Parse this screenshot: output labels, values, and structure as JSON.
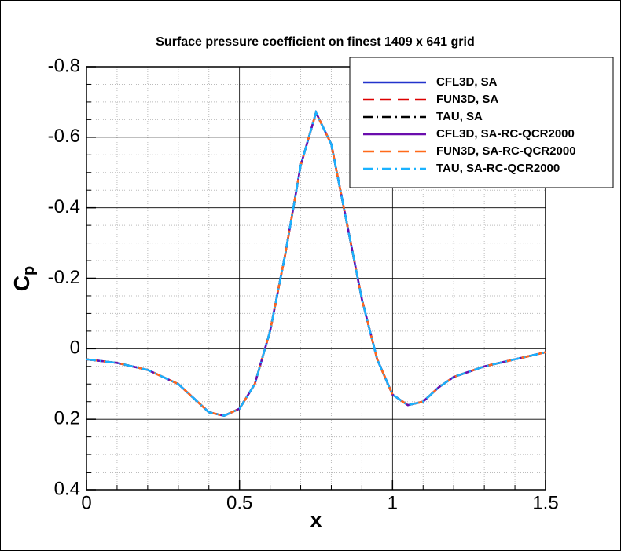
{
  "chart_data": {
    "type": "line",
    "title": "Surface pressure coefficient on finest 1409 x 641 grid",
    "xlabel": "x",
    "ylabel": "C",
    "ylabel_subscript": "p",
    "x": [
      0,
      0.1,
      0.2,
      0.3,
      0.35,
      0.4,
      0.45,
      0.5,
      0.55,
      0.6,
      0.65,
      0.7,
      0.75,
      0.8,
      0.85,
      0.9,
      0.95,
      1.0,
      1.05,
      1.1,
      1.15,
      1.2,
      1.3,
      1.4,
      1.5
    ],
    "series": [
      {
        "name": "CFL3D, SA",
        "color": "#2233cc",
        "dash": "solid",
        "values": [
          0.03,
          0.04,
          0.06,
          0.1,
          0.14,
          0.18,
          0.19,
          0.17,
          0.1,
          -0.05,
          -0.27,
          -0.52,
          -0.67,
          -0.58,
          -0.36,
          -0.14,
          0.03,
          0.13,
          0.16,
          0.15,
          0.11,
          0.08,
          0.05,
          0.03,
          0.01
        ]
      },
      {
        "name": "FUN3D, SA",
        "color": "#dd0000",
        "dash": "dashed",
        "values": [
          0.03,
          0.04,
          0.06,
          0.1,
          0.14,
          0.18,
          0.19,
          0.17,
          0.1,
          -0.05,
          -0.27,
          -0.52,
          -0.67,
          -0.58,
          -0.36,
          -0.14,
          0.03,
          0.13,
          0.16,
          0.15,
          0.11,
          0.08,
          0.05,
          0.03,
          0.01
        ]
      },
      {
        "name": "TAU, SA",
        "color": "#000000",
        "dash": "dashdot",
        "values": [
          0.03,
          0.04,
          0.06,
          0.1,
          0.14,
          0.18,
          0.19,
          0.17,
          0.1,
          -0.05,
          -0.27,
          -0.52,
          -0.67,
          -0.58,
          -0.36,
          -0.14,
          0.03,
          0.13,
          0.16,
          0.15,
          0.11,
          0.08,
          0.05,
          0.03,
          0.01
        ]
      },
      {
        "name": "CFL3D, SA-RC-QCR2000",
        "color": "#6a0dad",
        "dash": "solid",
        "values": [
          0.03,
          0.04,
          0.06,
          0.1,
          0.14,
          0.18,
          0.19,
          0.17,
          0.1,
          -0.05,
          -0.27,
          -0.52,
          -0.67,
          -0.58,
          -0.36,
          -0.14,
          0.03,
          0.13,
          0.16,
          0.15,
          0.11,
          0.08,
          0.05,
          0.03,
          0.01
        ]
      },
      {
        "name": "FUN3D, SA-RC-QCR2000",
        "color": "#ff6a1a",
        "dash": "dashed",
        "values": [
          0.03,
          0.04,
          0.06,
          0.1,
          0.14,
          0.18,
          0.19,
          0.17,
          0.1,
          -0.05,
          -0.27,
          -0.52,
          -0.67,
          -0.58,
          -0.36,
          -0.14,
          0.03,
          0.13,
          0.16,
          0.15,
          0.11,
          0.08,
          0.05,
          0.03,
          0.01
        ]
      },
      {
        "name": "TAU, SA-RC-QCR2000",
        "color": "#1ab2ff",
        "dash": "dashdot",
        "values": [
          0.03,
          0.04,
          0.06,
          0.1,
          0.14,
          0.18,
          0.19,
          0.17,
          0.1,
          -0.05,
          -0.27,
          -0.52,
          -0.67,
          -0.58,
          -0.36,
          -0.14,
          0.03,
          0.13,
          0.16,
          0.15,
          0.11,
          0.08,
          0.05,
          0.03,
          0.01
        ]
      }
    ],
    "xlim": [
      0,
      1.5
    ],
    "ylim": [
      0.4,
      -0.8
    ],
    "xticks": [
      0,
      0.5,
      1,
      1.5
    ],
    "yticks": [
      -0.8,
      -0.6,
      -0.4,
      -0.2,
      0,
      0.2,
      0.4
    ],
    "minor_xticks": [
      0.1,
      0.2,
      0.3,
      0.4,
      0.6,
      0.7,
      0.8,
      0.9,
      1.1,
      1.2,
      1.3,
      1.4
    ],
    "minor_yticks": [
      -0.75,
      -0.7,
      -0.65,
      -0.55,
      -0.5,
      -0.45,
      -0.35,
      -0.3,
      -0.25,
      -0.15,
      -0.1,
      -0.05,
      0.05,
      0.1,
      0.15,
      0.25,
      0.3,
      0.35
    ],
    "grid": true,
    "legend": "upper right"
  }
}
